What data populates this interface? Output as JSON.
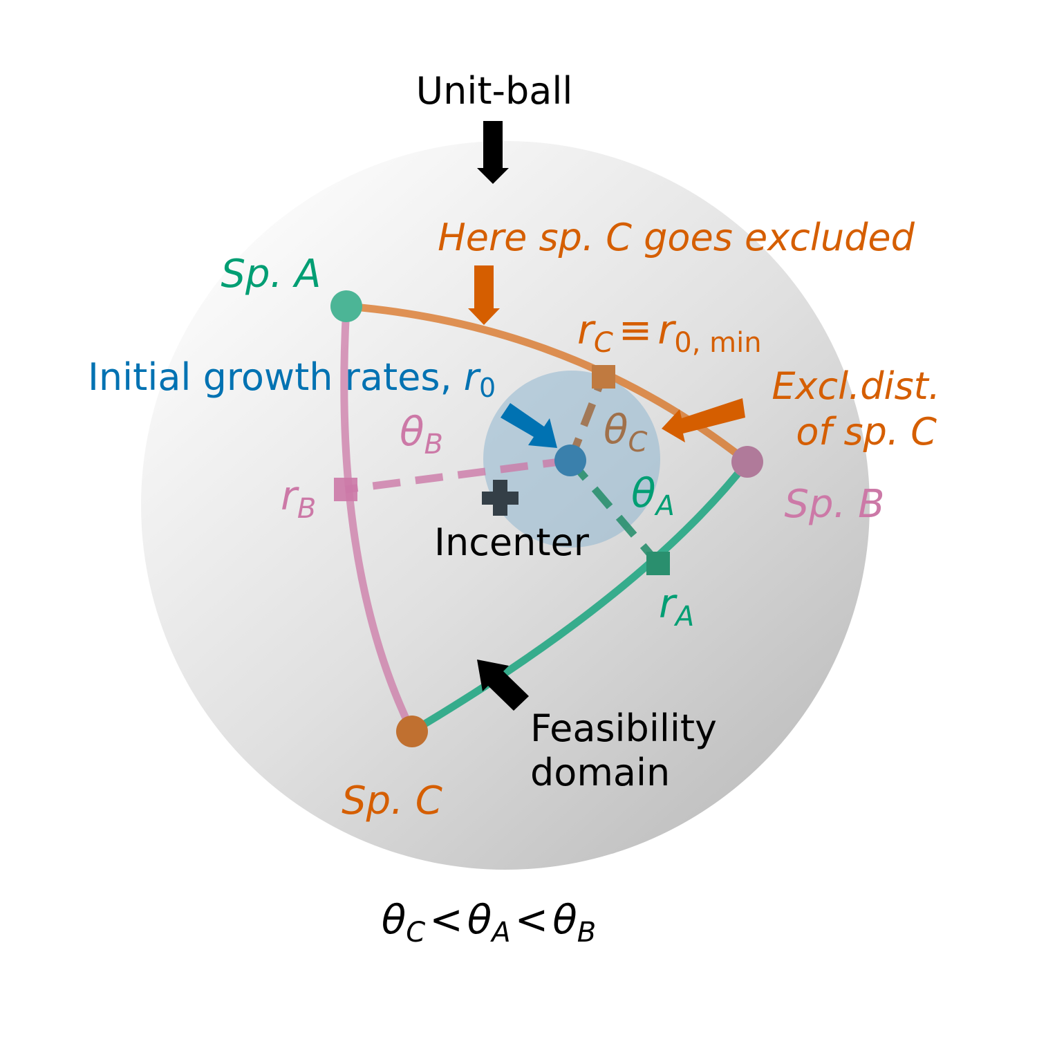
{
  "colors": {
    "species_a": "#009E73",
    "species_b": "#CC79A7",
    "species_c": "#D55E00",
    "initial": "#0072B2",
    "black": "#000000"
  },
  "labels": {
    "unit_ball": "Unit-ball",
    "exclusion_note": "Here sp. C goes excluded",
    "sp_a": "Sp. A",
    "sp_b": "Sp. B",
    "sp_c": "Sp. C",
    "initial_rates": "Initial growth rates, ",
    "r_symbol": "r",
    "r0_sub": "0",
    "theta": "θ",
    "sub_a": "A",
    "sub_b": "B",
    "sub_c": "C",
    "equiv": "≡",
    "r0min_sub": "0, min",
    "excl_line1": "Excl.dist.",
    "excl_line2": "of sp. C",
    "incenter": "Incenter",
    "feas_line1": "Feasibility",
    "feas_line2": "domain",
    "lt": "<"
  }
}
